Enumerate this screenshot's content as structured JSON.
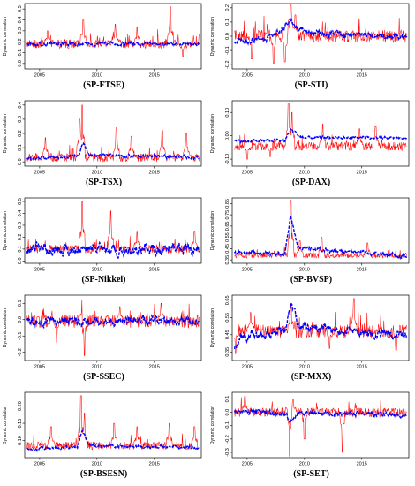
{
  "figure": {
    "ylabel": "Dynamic correlation",
    "x_ticks": [
      "2005",
      "2010",
      "2015"
    ],
    "series_colors": {
      "dcc": "#ff0000",
      "model": "#0000ff"
    }
  },
  "chart_data": [
    {
      "type": "line",
      "caption": "(SP-FTSE)",
      "ylim": [
        -0.05,
        0.55
      ],
      "y_ticks": [
        0.0,
        0.1,
        0.2,
        0.3,
        0.4,
        0.5
      ],
      "y_tick_labels": [
        "0.0",
        "0.1",
        "0.2",
        "0.3",
        "0.4",
        "0.5"
      ],
      "xlim": [
        2003.7,
        2019.1
      ],
      "base": 0.18,
      "red_noise": 0.04,
      "blue_noise": 0.015,
      "red_spikes": [
        [
          2008.8,
          0.4
        ],
        [
          2011.6,
          0.36
        ],
        [
          2016.4,
          0.52
        ],
        [
          2013.5,
          0.33
        ],
        [
          2005.7,
          0.3
        ]
      ],
      "dips": [
        [
          2017.5,
          0.06
        ]
      ],
      "blue_level": []
    },
    {
      "type": "line",
      "caption": "(SP-STI)",
      "ylim": [
        -0.23,
        0.23
      ],
      "y_ticks": [
        -0.2,
        -0.1,
        0.0,
        0.1,
        0.2
      ],
      "y_tick_labels": [
        "-0.2",
        "-0.1",
        "0.0",
        "0.1",
        "0.2"
      ],
      "xlim": [
        2003.7,
        2019.1
      ],
      "base": 0.0,
      "red_noise": 0.045,
      "blue_noise": 0.02,
      "red_spikes": [
        [
          2008.8,
          0.22
        ],
        [
          2009.2,
          0.15
        ]
      ],
      "dips": [
        [
          2005.4,
          -0.16
        ],
        [
          2007.3,
          -0.19
        ],
        [
          2008.3,
          -0.18
        ]
      ],
      "blue_level": [
        [
          2003.8,
          -0.04
        ],
        [
          2006.5,
          -0.02
        ],
        [
          2008.2,
          0.05
        ],
        [
          2008.7,
          0.12
        ],
        [
          2009.3,
          0.06
        ],
        [
          2010.5,
          0.02
        ],
        [
          2019.0,
          0.0
        ]
      ]
    },
    {
      "type": "line",
      "caption": "(SP-TSX)",
      "ylim": [
        -0.03,
        0.43
      ],
      "y_ticks": [
        0.0,
        0.1,
        0.2,
        0.3,
        0.4
      ],
      "y_tick_labels": [
        "0.0",
        "0.1",
        "0.2",
        "0.3",
        "0.4"
      ],
      "xlim": [
        2003.7,
        2019.1
      ],
      "base": 0.03,
      "red_noise": 0.03,
      "blue_noise": 0.012,
      "red_spikes": [
        [
          2008.7,
          0.4
        ],
        [
          2008.5,
          0.3
        ],
        [
          2011.7,
          0.24
        ],
        [
          2015.7,
          0.22
        ],
        [
          2017.8,
          0.2
        ],
        [
          2005.5,
          0.17
        ],
        [
          2013.0,
          0.18
        ]
      ],
      "dips": [],
      "blue_level": [
        [
          2003.8,
          0.02
        ],
        [
          2008.4,
          0.04
        ],
        [
          2008.8,
          0.13
        ],
        [
          2009.3,
          0.05
        ],
        [
          2019.0,
          0.03
        ]
      ]
    },
    {
      "type": "line",
      "caption": "(SP-DAX)",
      "ylim": [
        -0.13,
        0.15
      ],
      "y_ticks": [
        -0.1,
        0.0,
        0.1
      ],
      "y_tick_labels": [
        "-0.10",
        "0.00",
        "0.10"
      ],
      "xlim": [
        2003.7,
        2019.1
      ],
      "base": -0.045,
      "red_noise": 0.018,
      "blue_noise": 0.006,
      "red_spikes": [
        [
          2008.6,
          0.14
        ],
        [
          2008.9,
          0.1
        ],
        [
          2011.6,
          0.05
        ],
        [
          2016.2,
          0.04
        ],
        [
          2014.8,
          0.03
        ]
      ],
      "dips": [
        [
          2005.0,
          -0.1
        ],
        [
          2007.0,
          -0.09
        ]
      ],
      "blue_level": [
        [
          2003.8,
          -0.025
        ],
        [
          2008.3,
          -0.02
        ],
        [
          2008.8,
          0.03
        ],
        [
          2009.5,
          -0.005
        ],
        [
          2019.0,
          -0.01
        ]
      ]
    },
    {
      "type": "line",
      "caption": "(SP-Nikkei)",
      "ylim": [
        -0.02,
        0.53
      ],
      "y_ticks": [
        0.0,
        0.1,
        0.2,
        0.3,
        0.4,
        0.5
      ],
      "y_tick_labels": [
        "0.0",
        "0.1",
        "0.2",
        "0.3",
        "0.4",
        "0.5"
      ],
      "xlim": [
        2003.7,
        2019.1
      ],
      "base": 0.1,
      "red_noise": 0.035,
      "blue_noise": 0.045,
      "red_spikes": [
        [
          2008.7,
          0.5
        ],
        [
          2011.2,
          0.42
        ],
        [
          2013.5,
          0.25
        ],
        [
          2018.5,
          0.25
        ]
      ],
      "dips": [],
      "blue_level": []
    },
    {
      "type": "line",
      "caption": "(SP-BVSP)",
      "ylim": [
        0.32,
        0.9
      ],
      "y_ticks": [
        0.35,
        0.45,
        0.55,
        0.65,
        0.75,
        0.85
      ],
      "y_tick_labels": [
        "0.35",
        "0.45",
        "0.55",
        "0.65",
        "0.75",
        "0.85"
      ],
      "xlim": [
        2003.7,
        2019.1
      ],
      "base": 0.39,
      "red_noise": 0.025,
      "blue_noise": 0.018,
      "red_spikes": [
        [
          2008.8,
          0.88
        ],
        [
          2011.5,
          0.55
        ],
        [
          2009.6,
          0.52
        ],
        [
          2015.5,
          0.5
        ]
      ],
      "dips": [],
      "blue_level": [
        [
          2003.8,
          0.42
        ],
        [
          2008.3,
          0.4
        ],
        [
          2008.8,
          0.75
        ],
        [
          2009.4,
          0.46
        ],
        [
          2019.0,
          0.38
        ]
      ]
    },
    {
      "type": "line",
      "caption": "(SP-SSEC)",
      "ylim": [
        -0.25,
        0.15
      ],
      "y_ticks": [
        -0.2,
        -0.1,
        0.0,
        0.1
      ],
      "y_tick_labels": [
        "-0.2",
        "-0.1",
        "0.0",
        "0.1"
      ],
      "xlim": [
        2003.7,
        2019.1
      ],
      "base": -0.01,
      "red_noise": 0.04,
      "blue_noise": 0.025,
      "red_spikes": [
        [
          2008.7,
          0.12
        ],
        [
          2012.0,
          0.08
        ],
        [
          2015.6,
          0.1
        ]
      ],
      "dips": [
        [
          2008.9,
          -0.22
        ],
        [
          2006.5,
          -0.14
        ]
      ],
      "blue_level": []
    },
    {
      "type": "line",
      "caption": "(SP-MXX)",
      "ylim": [
        0.3,
        0.68
      ],
      "y_ticks": [
        0.35,
        0.45,
        0.55,
        0.65
      ],
      "y_tick_labels": [
        "0.35",
        "0.45",
        "0.55",
        "0.65"
      ],
      "xlim": [
        2003.7,
        2019.1
      ],
      "base": 0.47,
      "red_noise": 0.04,
      "blue_noise": 0.025,
      "red_spikes": [
        [
          2008.8,
          0.62
        ],
        [
          2014.3,
          0.66
        ],
        [
          2005.3,
          0.58
        ]
      ],
      "dips": [
        [
          2004.0,
          0.34
        ],
        [
          2018.0,
          0.36
        ],
        [
          2012.2,
          0.37
        ]
      ],
      "blue_level": [
        [
          2003.8,
          0.36
        ],
        [
          2004.5,
          0.44
        ],
        [
          2008.3,
          0.48
        ],
        [
          2008.8,
          0.63
        ],
        [
          2009.5,
          0.5
        ],
        [
          2019.0,
          0.44
        ]
      ]
    },
    {
      "type": "line",
      "caption": "(SP-BSESN)",
      "ylim": [
        0.05,
        0.24
      ],
      "y_ticks": [
        0.1,
        0.15,
        0.2
      ],
      "y_tick_labels": [
        "0.10",
        "0.15",
        "0.20"
      ],
      "xlim": [
        2003.7,
        2019.1
      ],
      "base": 0.085,
      "red_noise": 0.012,
      "blue_noise": 0.004,
      "red_spikes": [
        [
          2008.6,
          0.23
        ],
        [
          2008.9,
          0.18
        ],
        [
          2011.5,
          0.15
        ],
        [
          2016.3,
          0.15
        ],
        [
          2006.0,
          0.14
        ],
        [
          2013.5,
          0.14
        ],
        [
          2018.5,
          0.14
        ]
      ],
      "dips": [],
      "blue_level": [
        [
          2003.8,
          0.075
        ],
        [
          2008.3,
          0.08
        ],
        [
          2008.7,
          0.13
        ],
        [
          2009.3,
          0.085
        ],
        [
          2019.0,
          0.08
        ]
      ]
    },
    {
      "type": "line",
      "caption": "(SP-SET)",
      "ylim": [
        -0.34,
        0.15
      ],
      "y_ticks": [
        -0.3,
        -0.2,
        -0.1,
        0.0,
        0.1
      ],
      "y_tick_labels": [
        "-0.3",
        "-0.2",
        "-0.1",
        "0.0",
        "0.1"
      ],
      "xlim": [
        2003.7,
        2019.1
      ],
      "base": 0.0,
      "red_noise": 0.035,
      "blue_noise": 0.018,
      "red_spikes": [
        [
          2004.8,
          0.12
        ],
        [
          2009.0,
          0.1
        ]
      ],
      "dips": [
        [
          2008.7,
          -0.33
        ],
        [
          2013.3,
          -0.3
        ],
        [
          2010.0,
          -0.2
        ]
      ],
      "blue_level": [
        [
          2003.8,
          0.01
        ],
        [
          2008.4,
          -0.01
        ],
        [
          2008.8,
          -0.08
        ],
        [
          2009.5,
          0.0
        ],
        [
          2019.0,
          -0.02
        ]
      ]
    }
  ]
}
